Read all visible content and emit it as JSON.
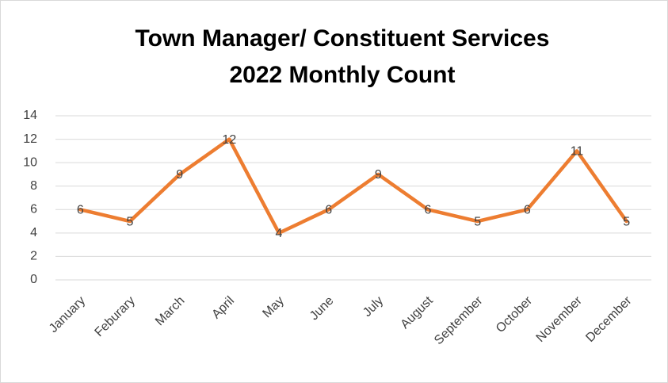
{
  "chart_data": {
    "type": "line",
    "title": [
      "Town Manager/ Constituent Services",
      "2022 Monthly Count"
    ],
    "categories": [
      "January",
      "Feburary",
      "March",
      "April",
      "May",
      "June",
      "July",
      "August",
      "September",
      "October",
      "November",
      "December"
    ],
    "values": [
      6,
      5,
      9,
      12,
      4,
      6,
      9,
      6,
      5,
      6,
      11,
      5
    ],
    "color": "#ed7d31",
    "ylim": [
      0,
      14
    ],
    "yticks": [
      0,
      2,
      4,
      6,
      8,
      10,
      12,
      14
    ],
    "grid": true,
    "data_labels": true
  }
}
